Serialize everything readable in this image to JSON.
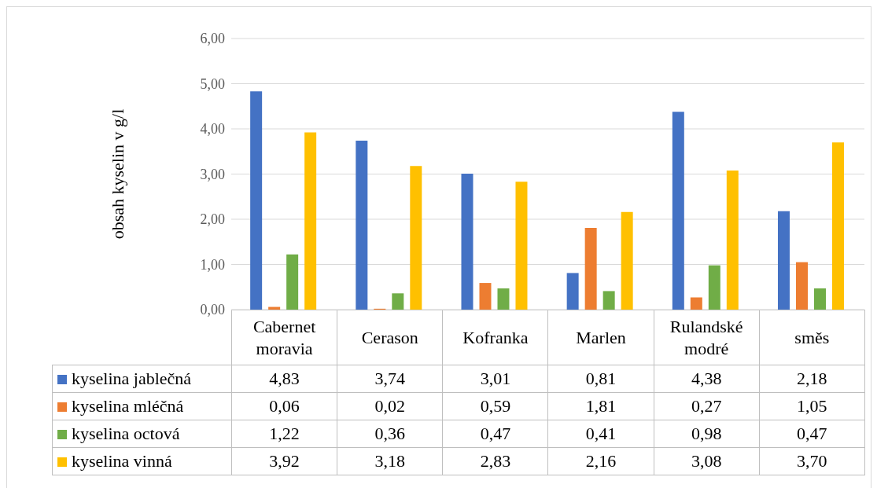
{
  "chart_data": {
    "type": "bar",
    "ylabel": "obsah kyselin v g/l",
    "categories": [
      "Cabernet moravia",
      "Cerason",
      "Kofranka",
      "Marlen",
      "Rulandské modré",
      "směs"
    ],
    "series": [
      {
        "name": "kyselina jablečná",
        "color": "#4472c4",
        "values": [
          4.83,
          3.74,
          3.01,
          0.81,
          4.38,
          2.18
        ],
        "value_labels": [
          "4,83",
          "3,74",
          "3,01",
          "0,81",
          "4,38",
          "2,18"
        ]
      },
      {
        "name": "kyselina mléčná",
        "color": "#ed7d31",
        "values": [
          0.06,
          0.02,
          0.59,
          1.81,
          0.27,
          1.05
        ],
        "value_labels": [
          "0,06",
          "0,02",
          "0,59",
          "1,81",
          "0,27",
          "1,05"
        ]
      },
      {
        "name": "kyselina octová",
        "color": "#70ad47",
        "values": [
          1.22,
          0.36,
          0.47,
          0.41,
          0.98,
          0.47
        ],
        "value_labels": [
          "1,22",
          "0,36",
          "0,47",
          "0,41",
          "0,98",
          "0,47"
        ]
      },
      {
        "name": "kyselina vinná",
        "color": "#ffc000",
        "values": [
          3.92,
          3.18,
          2.83,
          2.16,
          3.08,
          3.7
        ],
        "value_labels": [
          "3,92",
          "3,18",
          "2,83",
          "2,16",
          "3,08",
          "3,70"
        ]
      }
    ],
    "ylim": [
      0,
      6
    ],
    "yticks": [
      {
        "value": 0,
        "label": "0,00"
      },
      {
        "value": 1,
        "label": "1,00"
      },
      {
        "value": 2,
        "label": "2,00"
      },
      {
        "value": 3,
        "label": "3,00"
      },
      {
        "value": 4,
        "label": "4,00"
      },
      {
        "value": 5,
        "label": "5,00"
      },
      {
        "value": 6,
        "label": "6,00"
      }
    ],
    "grid": "y",
    "legend": "bottom"
  }
}
